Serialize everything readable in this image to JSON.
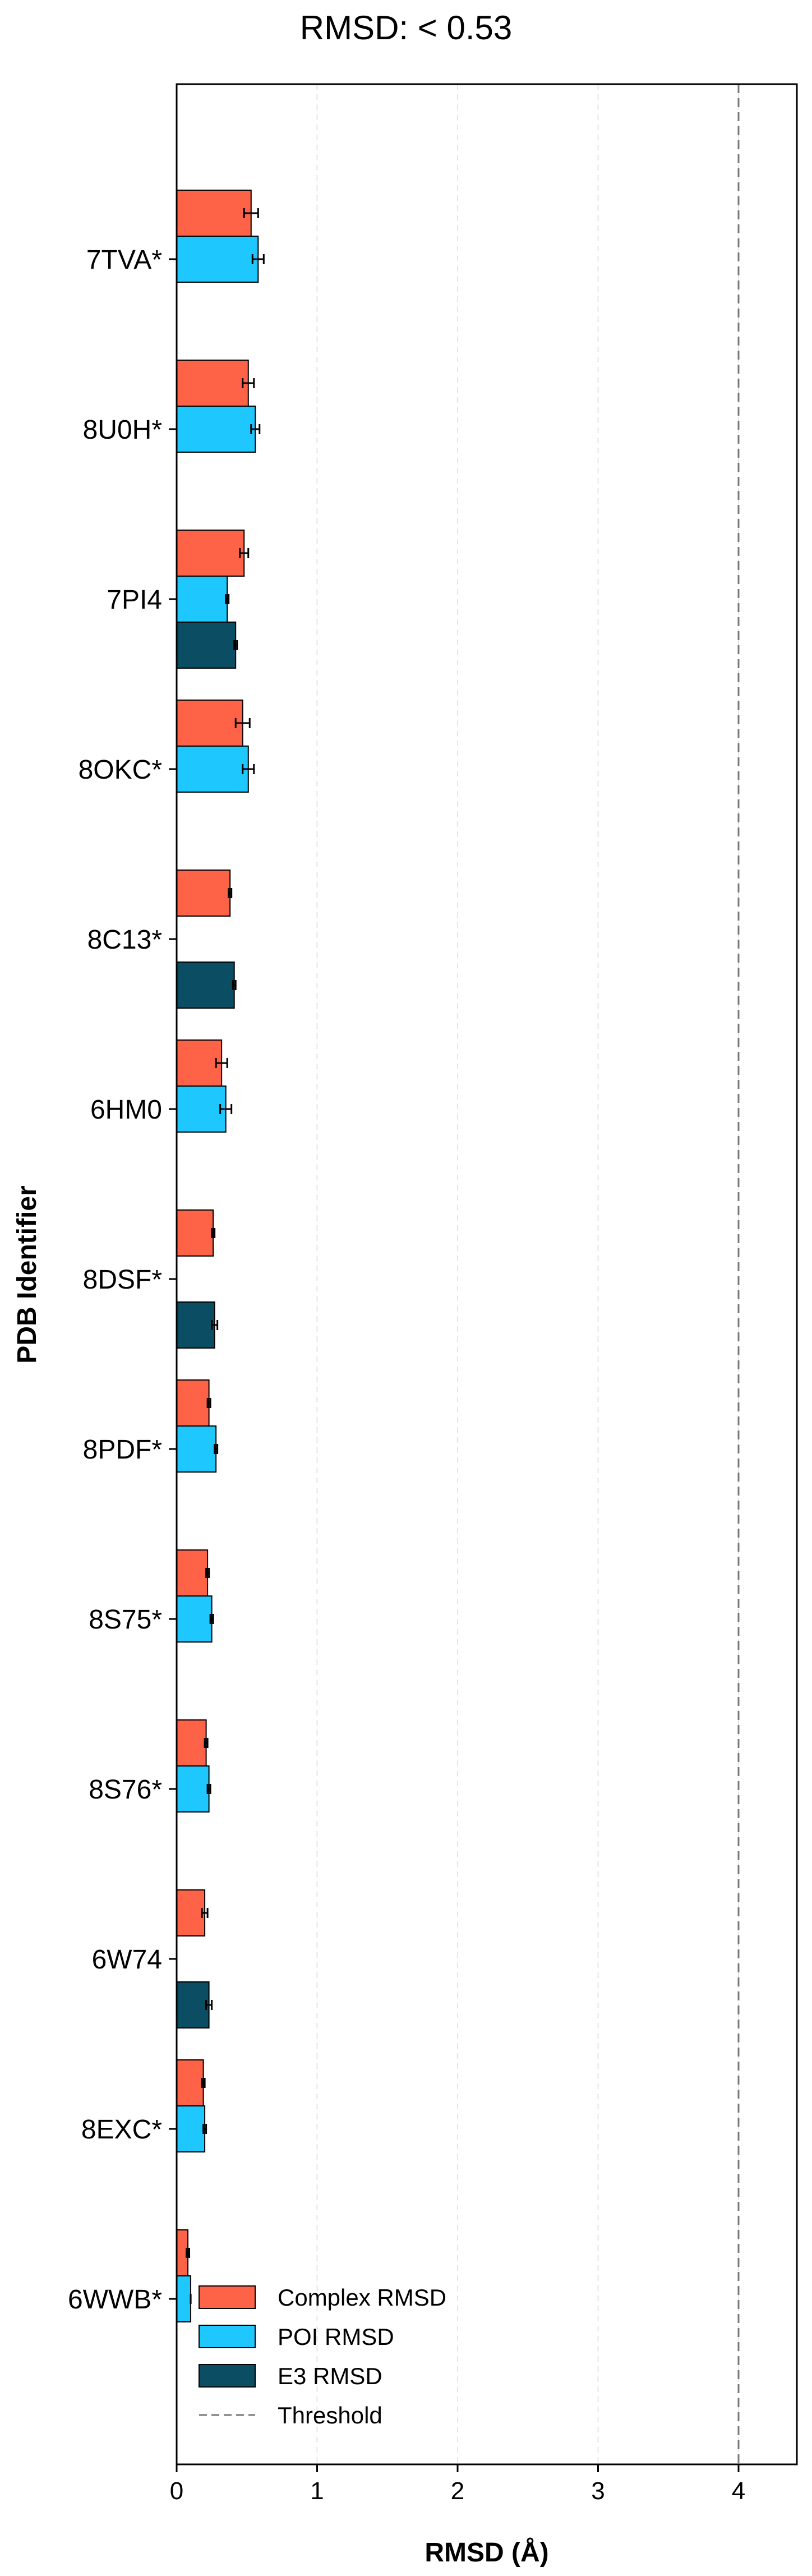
{
  "chart_data": {
    "type": "bar",
    "orientation": "horizontal",
    "title": "RMSD: < 0.53",
    "xlabel": "RMSD (Å)",
    "ylabel": "PDB Identifier",
    "xlim": [
      0,
      4.4
    ],
    "xticks": [
      0,
      1,
      2,
      3,
      4
    ],
    "grid": "vertical dashed",
    "legend_position": "bottom-left",
    "threshold": 4.0,
    "categories": [
      "7TVA*",
      "8U0H*",
      "7PI4",
      "8OKC*",
      "8C13*",
      "6HM0",
      "8DSF*",
      "8PDF*",
      "8S75*",
      "8S76*",
      "6W74",
      "8EXC*",
      "6WWB*"
    ],
    "series": [
      {
        "name": "Complex RMSD",
        "color": "#FF6347",
        "values": [
          0.53,
          0.51,
          0.48,
          0.47,
          0.38,
          0.32,
          0.26,
          0.23,
          0.22,
          0.21,
          0.2,
          0.19,
          0.08
        ],
        "errors": [
          0.05,
          0.04,
          0.03,
          0.05,
          0.01,
          0.04,
          0.01,
          0.01,
          0.01,
          0.01,
          0.02,
          0.01,
          0.01
        ]
      },
      {
        "name": "POI RMSD",
        "color": "#1EC8FF",
        "values": [
          0.58,
          0.56,
          0.36,
          0.51,
          null,
          0.35,
          null,
          0.28,
          0.25,
          0.23,
          null,
          0.2,
          0.1
        ],
        "errors": [
          0.04,
          0.03,
          0.01,
          0.04,
          null,
          0.04,
          null,
          0.01,
          0.01,
          0.01,
          null,
          0.01,
          0.0
        ]
      },
      {
        "name": "E3 RMSD",
        "color": "#0B4D63",
        "values": [
          null,
          null,
          0.42,
          null,
          0.41,
          null,
          0.27,
          null,
          null,
          null,
          0.23,
          null,
          null
        ],
        "errors": [
          null,
          null,
          0.01,
          null,
          0.01,
          null,
          0.02,
          null,
          null,
          null,
          0.02,
          null,
          null
        ]
      }
    ],
    "legend": [
      {
        "label": "Complex RMSD",
        "kind": "bar",
        "color": "#FF6347"
      },
      {
        "label": "POI RMSD",
        "kind": "bar",
        "color": "#1EC8FF"
      },
      {
        "label": "E3 RMSD",
        "kind": "bar",
        "color": "#0B4D63"
      },
      {
        "label": "Threshold",
        "kind": "dashed-line",
        "color": "#777777"
      }
    ]
  }
}
